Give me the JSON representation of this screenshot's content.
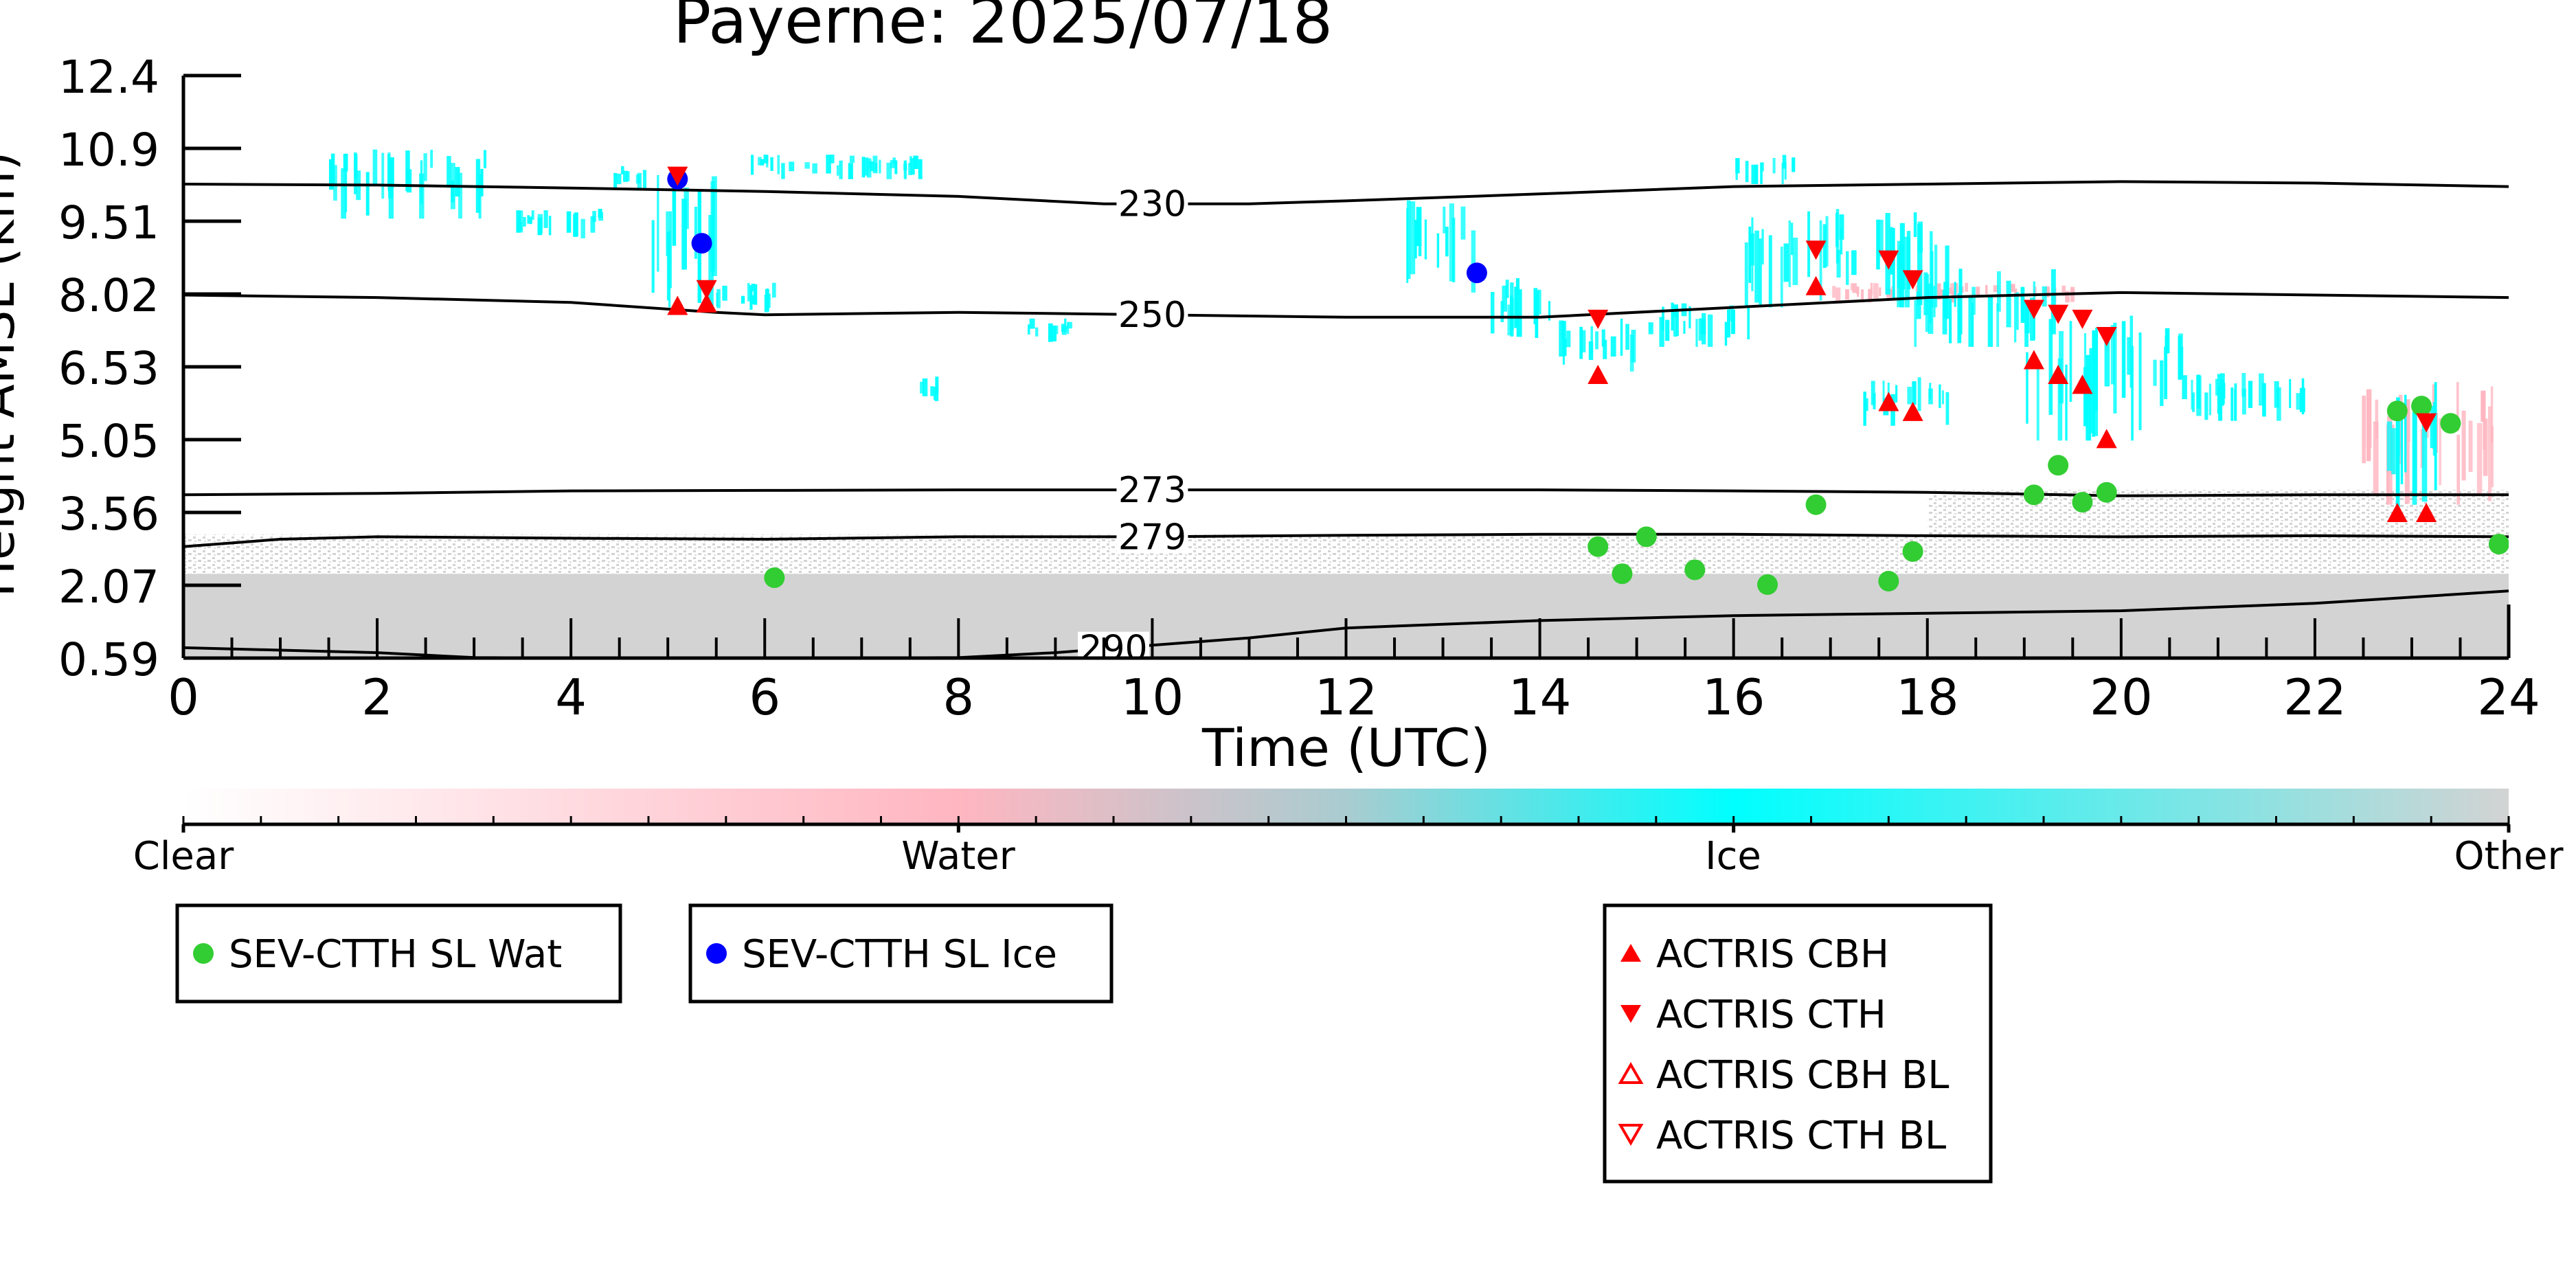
{
  "chart_data": {
    "type": "scatter",
    "title": "Payerne: 2025/07/18",
    "xlabel": "Time (UTC)",
    "ylabel": "Height AMSL (km)",
    "xlim": [
      0,
      24
    ],
    "ylim": [
      0.59,
      12.4
    ],
    "x_ticks": [
      "0",
      "2",
      "4",
      "6",
      "8",
      "10",
      "12",
      "14",
      "16",
      "18",
      "20",
      "22",
      "24"
    ],
    "y_ticks": [
      "0.59",
      "2.07",
      "3.56",
      "5.05",
      "6.53",
      "8.02",
      "9.51",
      "10.9",
      "12.4"
    ],
    "grid": false,
    "colorbar": {
      "labels": [
        "Clear",
        "Water",
        "Ice",
        "Other"
      ],
      "colors": [
        "#ffffff",
        "#ffb6c1",
        "#00ffff",
        "#d3d3d3"
      ]
    },
    "contours": [
      {
        "label": "230",
        "label_x": 10.0,
        "x": [
          0,
          2,
          4,
          6,
          8,
          9.5,
          11,
          12,
          14,
          16,
          18,
          20,
          22,
          24
        ],
        "y": [
          10.2,
          10.18,
          10.12,
          10.05,
          9.95,
          9.8,
          9.8,
          9.86,
          10.0,
          10.15,
          10.2,
          10.25,
          10.22,
          10.15
        ]
      },
      {
        "label": "250",
        "label_x": 10.0,
        "x": [
          0,
          2,
          4,
          5.5,
          6,
          8,
          10,
          12,
          14,
          16,
          18,
          20,
          22,
          24
        ],
        "y": [
          7.95,
          7.9,
          7.8,
          7.6,
          7.55,
          7.6,
          7.55,
          7.5,
          7.5,
          7.7,
          7.9,
          8.0,
          7.95,
          7.9
        ]
      },
      {
        "label": "273",
        "label_x": 10.0,
        "x": [
          0,
          2,
          4,
          6,
          8,
          10,
          12,
          14,
          16,
          18,
          20,
          22,
          24
        ],
        "y": [
          3.9,
          3.93,
          3.98,
          3.99,
          4.0,
          4.0,
          4.0,
          4.0,
          3.98,
          3.95,
          3.88,
          3.9,
          3.9
        ]
      },
      {
        "label": "279",
        "label_x": 10.0,
        "x": [
          0,
          1,
          2,
          4,
          6,
          8,
          10,
          12,
          14,
          16,
          18,
          20,
          22,
          24
        ],
        "y": [
          2.85,
          3.0,
          3.05,
          3.02,
          3.0,
          3.05,
          3.05,
          3.08,
          3.1,
          3.1,
          3.07,
          3.05,
          3.07,
          3.05
        ]
      },
      {
        "label": "290",
        "label_x": 9.6,
        "x": [
          0,
          2,
          3,
          4,
          6,
          7,
          8,
          9,
          10,
          11,
          12,
          14,
          16,
          18,
          20,
          22,
          24
        ],
        "y": [
          0.8,
          0.7,
          0.6,
          0.59,
          0.59,
          0.59,
          0.6,
          0.7,
          0.85,
          1.0,
          1.2,
          1.35,
          1.45,
          1.5,
          1.55,
          1.7,
          1.95
        ]
      }
    ],
    "series": [
      {
        "name": "SEV-CTTH SL Wat",
        "marker": "circle",
        "color": "#32cd32",
        "points": [
          [
            6.1,
            2.22
          ],
          [
            14.6,
            2.85
          ],
          [
            14.85,
            2.3
          ],
          [
            15.1,
            3.05
          ],
          [
            15.6,
            2.38
          ],
          [
            16.35,
            2.08
          ],
          [
            16.85,
            3.7
          ],
          [
            17.6,
            2.15
          ],
          [
            17.85,
            2.75
          ],
          [
            19.1,
            3.9
          ],
          [
            19.35,
            4.5
          ],
          [
            19.6,
            3.75
          ],
          [
            19.85,
            3.95
          ],
          [
            22.85,
            5.6
          ],
          [
            23.1,
            5.7
          ],
          [
            23.4,
            5.35
          ],
          [
            23.9,
            2.9
          ]
        ]
      },
      {
        "name": "SEV-CTTH SL Ice",
        "marker": "circle",
        "color": "#0000ff",
        "points": [
          [
            5.1,
            10.3
          ],
          [
            5.35,
            9.0
          ],
          [
            13.35,
            8.4
          ]
        ]
      },
      {
        "name": "ACTRIS CBH",
        "marker": "triangle-up",
        "color": "#ff0000",
        "points": [
          [
            5.1,
            7.7
          ],
          [
            5.4,
            7.75
          ],
          [
            14.6,
            6.3
          ],
          [
            16.85,
            8.1
          ],
          [
            17.6,
            5.75
          ],
          [
            17.85,
            5.55
          ],
          [
            19.1,
            6.6
          ],
          [
            19.35,
            6.3
          ],
          [
            19.6,
            6.1
          ],
          [
            19.85,
            5.0
          ],
          [
            22.85,
            3.5
          ],
          [
            23.15,
            3.5
          ]
        ]
      },
      {
        "name": "ACTRIS CTH",
        "marker": "triangle-down",
        "color": "#ff0000",
        "points": [
          [
            5.1,
            10.4
          ],
          [
            5.4,
            8.1
          ],
          [
            14.6,
            7.5
          ],
          [
            16.85,
            8.9
          ],
          [
            17.6,
            8.7
          ],
          [
            17.85,
            8.3
          ],
          [
            19.1,
            7.7
          ],
          [
            19.35,
            7.6
          ],
          [
            19.6,
            7.5
          ],
          [
            19.85,
            7.15
          ],
          [
            23.15,
            5.4
          ]
        ]
      },
      {
        "name": "ACTRIS CBH BL",
        "marker": "triangle-up-open",
        "color": "#ff0000",
        "points": []
      },
      {
        "name": "ACTRIS CTH BL",
        "marker": "triangle-down-open",
        "color": "#ff0000",
        "points": []
      }
    ],
    "background_classification": {
      "ice_regions": [
        {
          "x": [
            1.5,
            3.1
          ],
          "y": [
            9.5,
            10.9
          ]
        },
        {
          "x": [
            3.3,
            4.3
          ],
          "y": [
            9.1,
            9.7
          ]
        },
        {
          "x": [
            4.4,
            4.8
          ],
          "y": [
            10.1,
            10.6
          ]
        },
        {
          "x": [
            4.8,
            5.5
          ],
          "y": [
            7.7,
            10.4
          ]
        },
        {
          "x": [
            5.4,
            6.1
          ],
          "y": [
            7.6,
            8.2
          ]
        },
        {
          "x": [
            5.8,
            7.6
          ],
          "y": [
            10.3,
            10.8
          ]
        },
        {
          "x": [
            7.6,
            7.8
          ],
          "y": [
            5.8,
            6.3
          ]
        },
        {
          "x": [
            8.6,
            9.2
          ],
          "y": [
            7.0,
            7.5
          ]
        },
        {
          "x": [
            12.6,
            13.3
          ],
          "y": [
            8.0,
            9.9
          ]
        },
        {
          "x": [
            13.4,
            14.2
          ],
          "y": [
            7.0,
            8.3
          ]
        },
        {
          "x": [
            14.1,
            15.0
          ],
          "y": [
            6.4,
            7.5
          ]
        },
        {
          "x": [
            15.1,
            16.2
          ],
          "y": [
            6.9,
            7.8
          ]
        },
        {
          "x": [
            16.0,
            16.6
          ],
          "y": [
            10.2,
            10.8
          ]
        },
        {
          "x": [
            16.1,
            18.2
          ],
          "y": [
            7.7,
            9.7
          ]
        },
        {
          "x": [
            17.3,
            18.2
          ],
          "y": [
            5.3,
            6.3
          ]
        },
        {
          "x": [
            17.8,
            19.3
          ],
          "y": [
            6.9,
            8.5
          ]
        },
        {
          "x": [
            19.0,
            20.2
          ],
          "y": [
            5.0,
            7.7
          ]
        },
        {
          "x": [
            20.2,
            20.6
          ],
          "y": [
            5.7,
            7.3
          ]
        },
        {
          "x": [
            20.6,
            22.0
          ],
          "y": [
            5.4,
            6.4
          ]
        },
        {
          "x": [
            22.7,
            23.3
          ],
          "y": [
            3.6,
            6.4
          ]
        }
      ],
      "water_regions": [
        {
          "x": [
            17.0,
            19.5
          ],
          "y": [
            7.8,
            8.2
          ]
        },
        {
          "x": [
            22.4,
            23.9
          ],
          "y": [
            3.7,
            6.2
          ]
        }
      ],
      "other_regions": [
        {
          "x": [
            0.0,
            24.0
          ],
          "y": [
            0.59,
            2.3
          ],
          "density": "solid"
        },
        {
          "x": [
            0.0,
            24.0
          ],
          "y": [
            2.3,
            3.1
          ],
          "density": "speckled"
        },
        {
          "x": [
            18.0,
            24.0
          ],
          "y": [
            3.0,
            4.0
          ],
          "density": "speckled"
        }
      ]
    }
  },
  "legends": {
    "left": {
      "entries": [
        "SEV-CTTH SL Wat"
      ]
    },
    "middle": {
      "entries": [
        "SEV-CTTH SL Ice"
      ]
    },
    "right": {
      "entries": [
        "ACTRIS CBH",
        "ACTRIS CTH",
        "ACTRIS CBH BL",
        "ACTRIS CTH BL"
      ]
    }
  }
}
